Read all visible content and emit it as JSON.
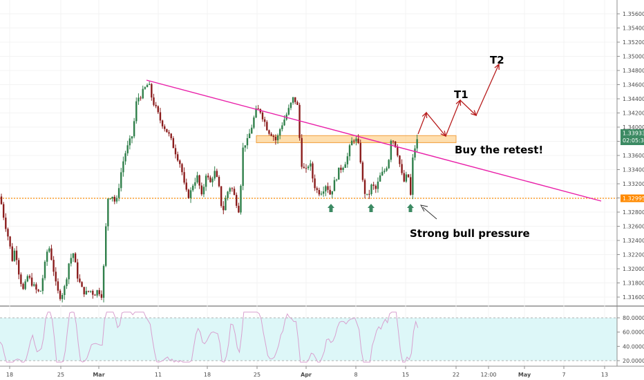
{
  "chart_data": {
    "type": "candlestick",
    "price_axis": {
      "ticks": [
        "1.35600",
        "1.35400",
        "1.35200",
        "1.35000",
        "1.34800",
        "1.34600",
        "1.34400",
        "1.34200",
        "1.34000",
        "1.33800",
        "1.33600",
        "1.33400",
        "1.33200",
        "1.33000",
        "1.32800",
        "1.32600",
        "1.32400",
        "1.32200",
        "1.32000",
        "1.31800",
        "1.31600"
      ],
      "range": [
        1.3155,
        1.3568
      ]
    },
    "time_axis": {
      "labels": [
        "18",
        "25",
        "Mar",
        "11",
        "18",
        "25",
        "Apr",
        "8",
        "15",
        "22",
        "12:00",
        "May",
        "7",
        "13"
      ]
    },
    "current_price": {
      "label": "1.33933",
      "color": "#3c8a63"
    },
    "countdown": {
      "label": "02:05:39",
      "color": "#3c8a63"
    },
    "support_level": {
      "label": "1.32995",
      "value": 1.32995,
      "color": "#ff8a00"
    },
    "trendline": {
      "from": [
        "Mar 10",
        1.347
      ],
      "to": [
        "May 13",
        1.33
      ],
      "color": "#e91ea8"
    },
    "retest_zone": {
      "range": [
        1.3378,
        1.3388
      ],
      "color": "#ffb74d"
    },
    "candle_colors": {
      "up": "#2f7f4a",
      "down": "#8a1c1c"
    },
    "projection": [
      1.3392,
      1.342,
      1.339,
      1.344,
      1.342,
      1.3485
    ],
    "projection_color": "#b71c1c",
    "targets": [
      "T1",
      "T2"
    ],
    "bottom_markers": 3,
    "annotations": {
      "buy_retest": "Buy the retest!",
      "bull_pressure": "Strong bull pressure"
    },
    "rsi": {
      "ticks": [
        "80.0000",
        "60.0000",
        "40.0000",
        "20.0000"
      ],
      "range": [
        15,
        95
      ],
      "bands": [
        80,
        20
      ],
      "line_color": "#d8a0cf",
      "band_fill": "#ddf7f8",
      "last_value": 66
    }
  }
}
